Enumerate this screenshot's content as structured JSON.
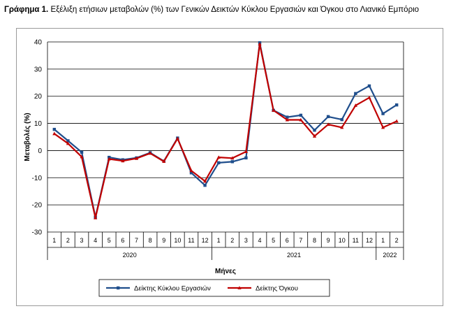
{
  "title_prefix": "Γράφημα 1.",
  "title_text": "Εξέλιξη ετήσιων μεταβολών (%) των Γενικών Δεικτών Κύκλου Εργασιών και Όγκου στο Λιανικό Εμπόριο",
  "chart_data": {
    "type": "line",
    "xlabel": "Μήνες",
    "ylabel": "Μεταβολές (%)",
    "ylim": [
      -30,
      40
    ],
    "yticks": [
      40,
      30,
      20,
      10,
      0,
      -10,
      -20,
      -30
    ],
    "grid": "horizontal",
    "legend_position": "bottom",
    "categories": [
      "1",
      "2",
      "3",
      "4",
      "5",
      "6",
      "7",
      "8",
      "9",
      "10",
      "11",
      "12",
      "1",
      "2",
      "3",
      "4",
      "5",
      "6",
      "7",
      "8",
      "9",
      "10",
      "11",
      "12",
      "1",
      "2"
    ],
    "year_groups": [
      {
        "label": "2020",
        "count": 12
      },
      {
        "label": "2021",
        "count": 12
      },
      {
        "label": "2022",
        "count": 2
      }
    ],
    "series": [
      {
        "name": "Δείκτης Κύκλου Εργασιών",
        "color": "#1f4e8c",
        "marker": "square",
        "values": [
          7.8,
          3.6,
          -0.6,
          -24.5,
          -2.5,
          -3.4,
          -2.7,
          -0.8,
          -3.9,
          4.6,
          -8.2,
          -12.8,
          -4.5,
          -4.1,
          -2.7,
          39.7,
          14.8,
          12.3,
          13.0,
          7.5,
          12.5,
          11.4,
          21.0,
          23.8,
          13.6,
          16.8
        ]
      },
      {
        "name": "Δείκτης Όγκου",
        "color": "#c00000",
        "marker": "triangle",
        "values": [
          6.2,
          2.6,
          -2.3,
          -24.8,
          -3.1,
          -3.8,
          -2.9,
          -1.0,
          -4.0,
          4.4,
          -7.4,
          -11.3,
          -2.5,
          -2.8,
          -0.4,
          39.2,
          14.8,
          11.3,
          11.3,
          5.3,
          9.6,
          8.5,
          16.6,
          19.5,
          8.5,
          10.8
        ]
      }
    ]
  }
}
